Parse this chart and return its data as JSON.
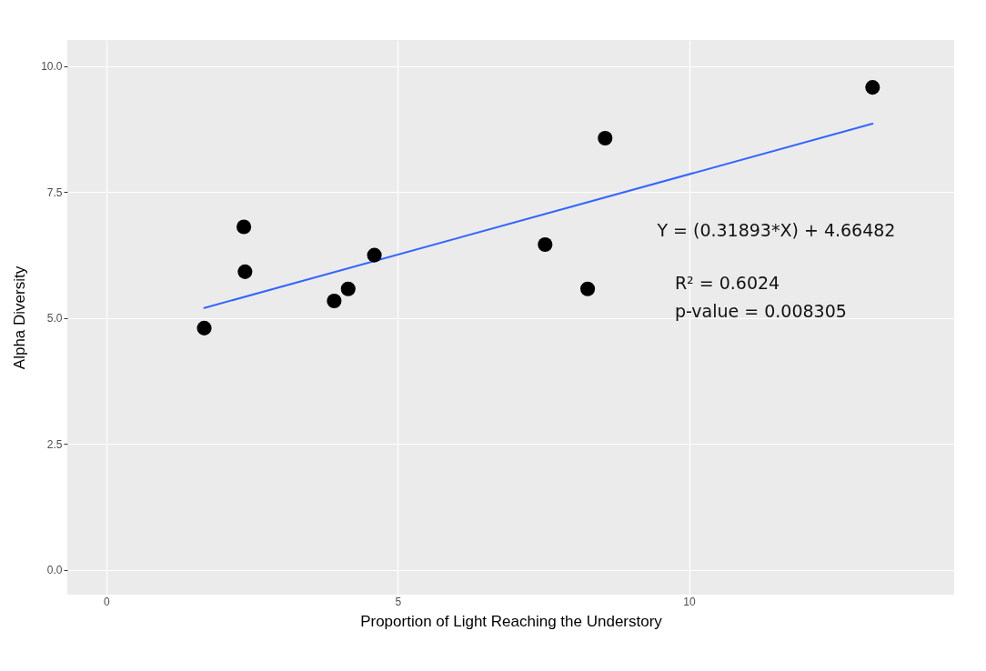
{
  "chart_data": {
    "type": "scatter",
    "xlabel": "Proportion of Light Reaching the Understory",
    "ylabel": "Alpha Diversity",
    "xlim": [
      -0.67,
      14.55
    ],
    "ylim": [
      -0.49,
      10.52
    ],
    "xticks": [
      0,
      5,
      10
    ],
    "yticks": [
      {
        "value": 0,
        "label": "0.0"
      },
      {
        "value": 2.5,
        "label": "2.5"
      },
      {
        "value": 5,
        "label": "5.0"
      },
      {
        "value": 7.5,
        "label": "7.5"
      },
      {
        "value": 10,
        "label": "10.0"
      }
    ],
    "grid": true,
    "series": [
      {
        "marker": "circle",
        "color": "#000000",
        "x": [
          1.68,
          2.36,
          2.38,
          3.91,
          4.15,
          4.6,
          7.53,
          8.26,
          8.56,
          13.15
        ],
        "values": [
          4.8,
          6.81,
          5.92,
          5.34,
          5.58,
          6.25,
          6.46,
          5.58,
          8.57,
          9.58
        ]
      },
      {
        "type": "line",
        "marker": "none",
        "color": "#3366ff",
        "x": [
          1.68,
          13.15
        ],
        "values": [
          5.2,
          8.86
        ]
      }
    ],
    "annotations": [
      "Y = (0.31893*X) + 4.66482",
      "R² = 0.6024",
      "p-value = 0.008305"
    ]
  }
}
